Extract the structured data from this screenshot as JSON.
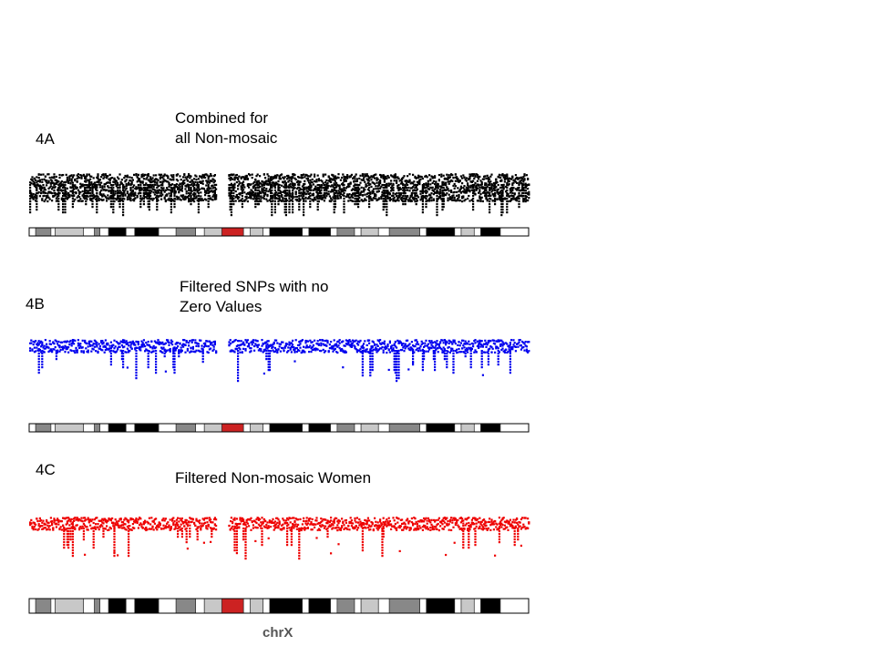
{
  "panels": [
    {
      "label": "4A",
      "title_line1": "Combined for",
      "title_line2": "all Non-mosaic",
      "color": "#000000",
      "density": "dense"
    },
    {
      "label": "4B",
      "title_line1": "Filtered SNPs with no",
      "title_line2": "Zero Values",
      "color": "#0000ee",
      "density": "sparse"
    },
    {
      "label": "4C",
      "title_line1": "Filtered Non-mosaic Women",
      "title_line2": "",
      "color": "#ee0000",
      "density": "sparse"
    }
  ],
  "ideogram": {
    "bands": [
      {
        "stain": "white"
      },
      {
        "stain": "gray"
      },
      {
        "stain": "white"
      },
      {
        "stain": "lightgray"
      },
      {
        "stain": "white"
      },
      {
        "stain": "gray"
      },
      {
        "stain": "white"
      },
      {
        "stain": "black"
      },
      {
        "stain": "white"
      },
      {
        "stain": "black"
      },
      {
        "stain": "white"
      },
      {
        "stain": "gray"
      },
      {
        "stain": "white"
      },
      {
        "stain": "lightgray"
      },
      {
        "stain": "centromere"
      },
      {
        "stain": "white"
      },
      {
        "stain": "lightgray"
      },
      {
        "stain": "white"
      },
      {
        "stain": "black"
      },
      {
        "stain": "white"
      },
      {
        "stain": "black"
      },
      {
        "stain": "white"
      },
      {
        "stain": "gray"
      },
      {
        "stain": "white"
      },
      {
        "stain": "lightgray"
      },
      {
        "stain": "white"
      },
      {
        "stain": "gray"
      },
      {
        "stain": "white"
      },
      {
        "stain": "black"
      },
      {
        "stain": "white"
      },
      {
        "stain": "lightgray"
      },
      {
        "stain": "white"
      },
      {
        "stain": "black"
      },
      {
        "stain": "white"
      }
    ]
  },
  "x_axis_label": "chrX"
}
